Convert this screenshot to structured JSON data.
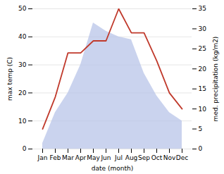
{
  "chart_data": {
    "type": "area",
    "categories": [
      "Jan",
      "Feb",
      "Mar",
      "Apr",
      "May",
      "Jun",
      "Jul",
      "Aug",
      "Sep",
      "Oct",
      "Nov",
      "Dec"
    ],
    "xlabel": "date (month)",
    "ylabel": "max temp (C)",
    "y2label": "med. precipitation (kg/m2)",
    "ylim": [
      0,
      50
    ],
    "yticks": [
      0,
      10,
      20,
      30,
      40,
      50
    ],
    "y2lim": [
      0,
      35
    ],
    "y2ticks": [
      0,
      5,
      10,
      15,
      20,
      25,
      30,
      35
    ],
    "grid": true,
    "series": [
      {
        "color": "#b8c4e8",
        "values": [
          2,
          13,
          20,
          30,
          45,
          42,
          40,
          39,
          27,
          19,
          13,
          10
        ]
      },
      {
        "type": "line",
        "axis": "y2",
        "color": "#c0392b",
        "values": [
          5,
          13,
          24,
          24,
          27,
          27,
          35,
          29,
          29,
          22,
          14,
          10
        ]
      }
    ]
  }
}
